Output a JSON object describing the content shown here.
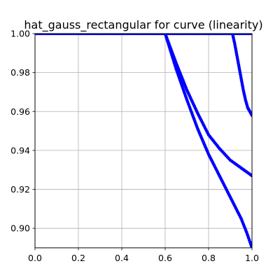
{
  "chart_data": {
    "type": "scatter",
    "title": "hat_gauss_rectangular for curve (linearity)",
    "xlabel": "",
    "ylabel": "",
    "xlim": [
      0.0,
      1.0
    ],
    "ylim": [
      0.89,
      1.0
    ],
    "xticks": [
      "0.0",
      "0.2",
      "0.4",
      "0.6",
      "0.8",
      "1.0"
    ],
    "yticks": [
      "0.90",
      "0.92",
      "0.94",
      "0.96",
      "0.98",
      "1.00"
    ],
    "grid": true,
    "colors": {
      "marker": "#0000ff",
      "grid": "#b0b0b0",
      "axes": "#000000"
    },
    "series": [
      {
        "x": [
          0.0,
          0.05,
          0.1,
          0.15,
          0.2,
          0.25,
          0.3,
          0.35,
          0.4,
          0.45,
          0.5,
          0.55,
          0.6
        ],
        "y": [
          1.0,
          1.0,
          1.0,
          1.0,
          1.0,
          1.0,
          1.0,
          1.0,
          1.0,
          1.0,
          1.0,
          1.0,
          1.0
        ]
      },
      {
        "x": [
          0.6,
          0.65,
          0.7,
          0.75,
          0.8,
          0.85,
          0.9,
          0.95,
          0.975,
          1.0
        ],
        "y": [
          1.0,
          0.982,
          0.966,
          0.951,
          0.938,
          0.927,
          0.916,
          0.905,
          0.898,
          0.89
        ]
      },
      {
        "x": [
          0.6,
          0.65,
          0.7,
          0.75,
          0.8,
          0.85,
          0.9,
          0.95,
          0.975,
          1.0
        ],
        "y": [
          1.0,
          0.985,
          0.971,
          0.959,
          0.948,
          0.941,
          0.935,
          0.931,
          0.929,
          0.927
        ]
      },
      {
        "x": [
          0.91,
          0.92,
          0.93,
          0.94,
          0.95,
          0.96,
          0.97,
          0.98,
          0.99,
          1.0
        ],
        "y": [
          1.0,
          0.995,
          0.989,
          0.983,
          0.977,
          0.971,
          0.966,
          0.962,
          0.96,
          0.958
        ]
      },
      {
        "x": [
          0.6,
          0.65,
          0.7,
          0.75,
          0.8,
          0.85,
          0.9,
          0.95,
          1.0
        ],
        "y": [
          1.0,
          1.0,
          1.0,
          1.0,
          1.0,
          1.0,
          1.0,
          1.0,
          1.0
        ]
      }
    ]
  }
}
